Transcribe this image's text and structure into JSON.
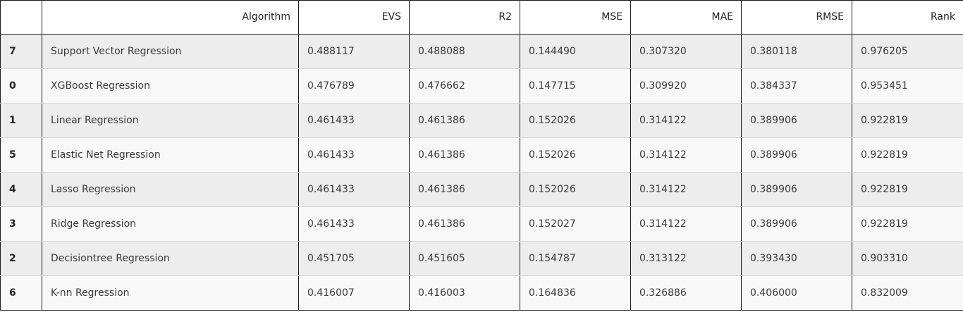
{
  "table": {
    "columns": [
      "",
      "Algorithm",
      "EVS",
      "R2",
      "MSE",
      "MAE",
      "RMSE",
      "Rank"
    ],
    "rows": [
      {
        "index": "7",
        "algorithm": "Support Vector Regression",
        "evs": "0.488117",
        "r2": "0.488088",
        "mse": "0.144490",
        "mae": "0.307320",
        "rmse": "0.380118",
        "rank": "0.976205"
      },
      {
        "index": "0",
        "algorithm": "XGBoost Regression",
        "evs": "0.476789",
        "r2": "0.476662",
        "mse": "0.147715",
        "mae": "0.309920",
        "rmse": "0.384337",
        "rank": "0.953451"
      },
      {
        "index": "1",
        "algorithm": "Linear Regression",
        "evs": "0.461433",
        "r2": "0.461386",
        "mse": "0.152026",
        "mae": "0.314122",
        "rmse": "0.389906",
        "rank": "0.922819"
      },
      {
        "index": "5",
        "algorithm": "Elastic Net Regression",
        "evs": "0.461433",
        "r2": "0.461386",
        "mse": "0.152026",
        "mae": "0.314122",
        "rmse": "0.389906",
        "rank": "0.922819"
      },
      {
        "index": "4",
        "algorithm": "Lasso Regression",
        "evs": "0.461433",
        "r2": "0.461386",
        "mse": "0.152026",
        "mae": "0.314122",
        "rmse": "0.389906",
        "rank": "0.922819"
      },
      {
        "index": "3",
        "algorithm": "Ridge Regression",
        "evs": "0.461433",
        "r2": "0.461386",
        "mse": "0.152027",
        "mae": "0.314122",
        "rmse": "0.389906",
        "rank": "0.922819"
      },
      {
        "index": "2",
        "algorithm": "Decisiontree Regression",
        "evs": "0.451705",
        "r2": "0.451605",
        "mse": "0.154787",
        "mae": "0.313122",
        "rmse": "0.393430",
        "rank": "0.903310"
      },
      {
        "index": "6",
        "algorithm": "K-nn Regression",
        "evs": "0.416007",
        "r2": "0.416003",
        "mse": "0.164836",
        "mae": "0.326886",
        "rmse": "0.406000",
        "rank": "0.832009"
      }
    ]
  },
  "colors": {
    "row_odd": "#ededed",
    "row_even": "#f8f8f8",
    "border": "#1b1b1b",
    "text": "#3a3a3a"
  }
}
